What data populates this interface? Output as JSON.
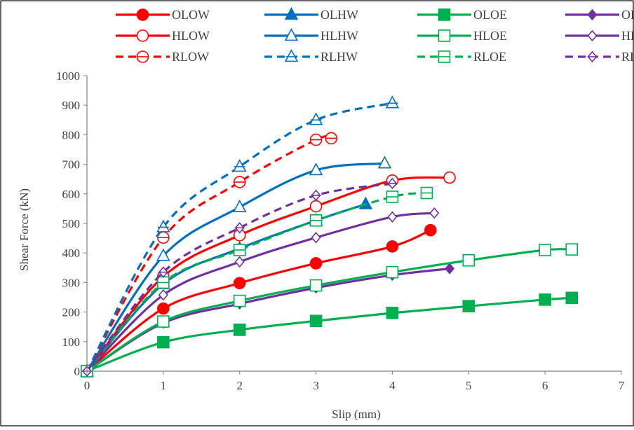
{
  "chart_data": {
    "type": "line",
    "xlabel": "Slip (mm)",
    "ylabel": "Shear Force (kN)",
    "xlim": [
      0,
      7
    ],
    "ylim": [
      0,
      1000
    ],
    "xticks": [
      "0",
      "1",
      "2",
      "3",
      "4",
      "5",
      "6",
      "7"
    ],
    "yticks": [
      "0",
      "100",
      "200",
      "300",
      "400",
      "500",
      "600",
      "700",
      "800",
      "900",
      "1000"
    ],
    "grid": false,
    "legend_position": "top",
    "series": [
      {
        "name": "OLOW",
        "color": "#ff0000",
        "dash": "solid",
        "marker": "circle",
        "filled": true,
        "points": [
          [
            0,
            0
          ],
          [
            1,
            212
          ],
          [
            2,
            298
          ],
          [
            3,
            365
          ],
          [
            4,
            422
          ],
          [
            4.5,
            477
          ]
        ]
      },
      {
        "name": "OLHW",
        "color": "#0070c0",
        "dash": "solid",
        "marker": "triangle",
        "filled": true,
        "points": [
          [
            0,
            0
          ],
          [
            1,
            295
          ],
          [
            2,
            415
          ],
          [
            3,
            510
          ],
          [
            3.65,
            565
          ]
        ]
      },
      {
        "name": "OLOE",
        "color": "#00b050",
        "dash": "solid",
        "marker": "square",
        "filled": true,
        "points": [
          [
            0,
            0
          ],
          [
            1,
            98
          ],
          [
            2,
            140
          ],
          [
            3,
            170
          ],
          [
            4,
            197
          ],
          [
            5,
            220
          ],
          [
            6,
            242
          ],
          [
            6.35,
            248
          ]
        ]
      },
      {
        "name": "OLHE",
        "color": "#7030a0",
        "dash": "solid",
        "marker": "diamond",
        "filled": true,
        "points": [
          [
            0,
            0
          ],
          [
            1,
            163
          ],
          [
            2,
            228
          ],
          [
            3,
            282
          ],
          [
            4,
            325
          ],
          [
            4.75,
            347
          ]
        ]
      },
      {
        "name": "HLOW",
        "color": "#ff0000",
        "dash": "solid",
        "marker": "circle",
        "filled": false,
        "points": [
          [
            0,
            0
          ],
          [
            1,
            320
          ],
          [
            2,
            460
          ],
          [
            3,
            558
          ],
          [
            4,
            645
          ],
          [
            4.75,
            655
          ]
        ]
      },
      {
        "name": "HLHW",
        "color": "#0070c0",
        "dash": "solid",
        "marker": "triangle",
        "filled": false,
        "points": [
          [
            0,
            0
          ],
          [
            1,
            390
          ],
          [
            2,
            555
          ],
          [
            3,
            680
          ],
          [
            3.9,
            703
          ]
        ]
      },
      {
        "name": "HLOE",
        "color": "#00b050",
        "dash": "solid",
        "marker": "square",
        "filled": false,
        "points": [
          [
            0,
            0
          ],
          [
            1,
            168
          ],
          [
            2,
            238
          ],
          [
            3,
            290
          ],
          [
            4,
            335
          ],
          [
            5,
            375
          ],
          [
            6,
            410
          ],
          [
            6.35,
            412
          ]
        ]
      },
      {
        "name": "HLHE",
        "color": "#7030a0",
        "dash": "solid",
        "marker": "diamond",
        "filled": false,
        "points": [
          [
            0,
            0
          ],
          [
            1,
            258
          ],
          [
            2,
            370
          ],
          [
            3,
            452
          ],
          [
            4,
            522
          ],
          [
            4.55,
            535
          ]
        ]
      },
      {
        "name": "RLOW",
        "color": "#ff0000",
        "dash": "dashed",
        "marker": "circle-line",
        "filled": false,
        "points": [
          [
            0,
            0
          ],
          [
            1,
            452
          ],
          [
            2,
            640
          ],
          [
            3,
            783
          ],
          [
            3.2,
            788
          ]
        ]
      },
      {
        "name": "RLHW",
        "color": "#0070c0",
        "dash": "dashed",
        "marker": "triangle-line",
        "filled": false,
        "points": [
          [
            0,
            0
          ],
          [
            1,
            487
          ],
          [
            2,
            692
          ],
          [
            3,
            850
          ],
          [
            4,
            907
          ]
        ]
      },
      {
        "name": "RLOE",
        "color": "#00b050",
        "dash": "dashed",
        "marker": "square-line",
        "filled": false,
        "points": [
          [
            0,
            0
          ],
          [
            1,
            300
          ],
          [
            2,
            410
          ],
          [
            3,
            510
          ],
          [
            4,
            590
          ],
          [
            4.45,
            603
          ]
        ]
      },
      {
        "name": "RLHE",
        "color": "#7030a0",
        "dash": "dashed",
        "marker": "diamond-line",
        "filled": false,
        "points": [
          [
            0,
            0
          ],
          [
            1,
            335
          ],
          [
            2,
            485
          ],
          [
            3,
            595
          ],
          [
            4,
            635
          ]
        ]
      }
    ]
  }
}
